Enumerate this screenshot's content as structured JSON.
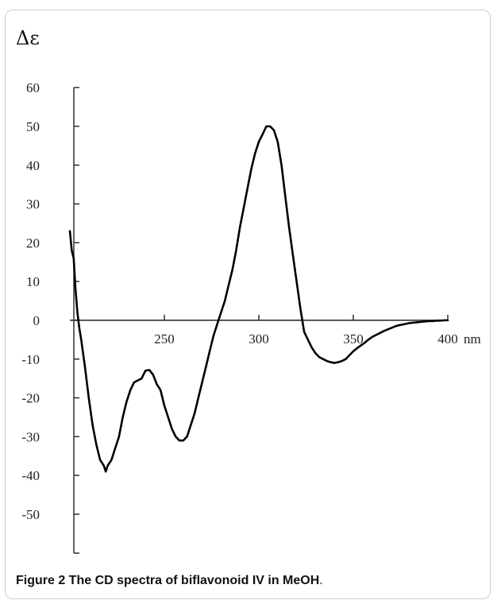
{
  "caption": {
    "label": "Figure 2",
    "text": " The CD spectra of biflavonoid IV in MeOH",
    "end": "."
  },
  "chart_data": {
    "type": "line",
    "title": "",
    "xlabel": "nm",
    "ylabel": "Δε",
    "xlim": [
      200,
      400
    ],
    "ylim": [
      -60,
      60
    ],
    "yticks": [
      60,
      50,
      40,
      30,
      20,
      10,
      0,
      -10,
      -20,
      -30,
      -40,
      -50
    ],
    "ytick_labels": [
      "60",
      "50",
      "40",
      "30",
      "20",
      "10",
      "0",
      "-10",
      "-20",
      "-30",
      "-40",
      "-50"
    ],
    "xticks": [
      250,
      300,
      350,
      400
    ],
    "xtick_labels": [
      "250",
      "300",
      "350",
      "400"
    ],
    "grid": false,
    "legend": "none",
    "series": [
      {
        "color": "#000000",
        "x": [
          200,
          201,
          202,
          203,
          204,
          205,
          206,
          208,
          210,
          212,
          214,
          216,
          218,
          219,
          220,
          222,
          224,
          226,
          228,
          230,
          232,
          234,
          236,
          238,
          240,
          242,
          244,
          246,
          248,
          250,
          252,
          254,
          256,
          258,
          260,
          262,
          264,
          266,
          268,
          270,
          272,
          274,
          276,
          278,
          280,
          282,
          284,
          286,
          288,
          290,
          292,
          294,
          296,
          298,
          300,
          302,
          304,
          306,
          308,
          310,
          312,
          314,
          316,
          318,
          320,
          322,
          324,
          326,
          328,
          330,
          332,
          334,
          336,
          338,
          340,
          342,
          344,
          346,
          348,
          350,
          352,
          354,
          356,
          358,
          360,
          362,
          364,
          366,
          368,
          370,
          372,
          374,
          376,
          378,
          380,
          382,
          384,
          386,
          388,
          390,
          392,
          394,
          396,
          398,
          400
        ],
        "y": [
          23,
          18,
          16,
          8,
          2,
          -2,
          -5,
          -12,
          -20,
          -27,
          -32,
          -36,
          -37.5,
          -39,
          -37.5,
          -36,
          -33,
          -30,
          -25,
          -21,
          -18,
          -16,
          -15.5,
          -15,
          -13,
          -12.8,
          -14,
          -16.5,
          -18,
          -22,
          -25,
          -28,
          -30,
          -31,
          -31,
          -30,
          -27,
          -24,
          -20,
          -16,
          -12,
          -8,
          -4,
          -1,
          2,
          5,
          9,
          13,
          18,
          24,
          29,
          34,
          39,
          43,
          46,
          48,
          50,
          50,
          49,
          46,
          40,
          32,
          24,
          17,
          10,
          3,
          -3,
          -5,
          -7,
          -8.5,
          -9.5,
          -10,
          -10.5,
          -10.8,
          -11,
          -10.8,
          -10.5,
          -10,
          -9,
          -8,
          -7.2,
          -6.5,
          -5.8,
          -5,
          -4.3,
          -3.8,
          -3.3,
          -2.8,
          -2.4,
          -2,
          -1.6,
          -1.3,
          -1.1,
          -0.9,
          -0.7,
          -0.6,
          -0.5,
          -0.4,
          -0.3,
          -0.2,
          -0.2,
          -0.1,
          -0.1,
          0,
          0
        ]
      }
    ]
  }
}
